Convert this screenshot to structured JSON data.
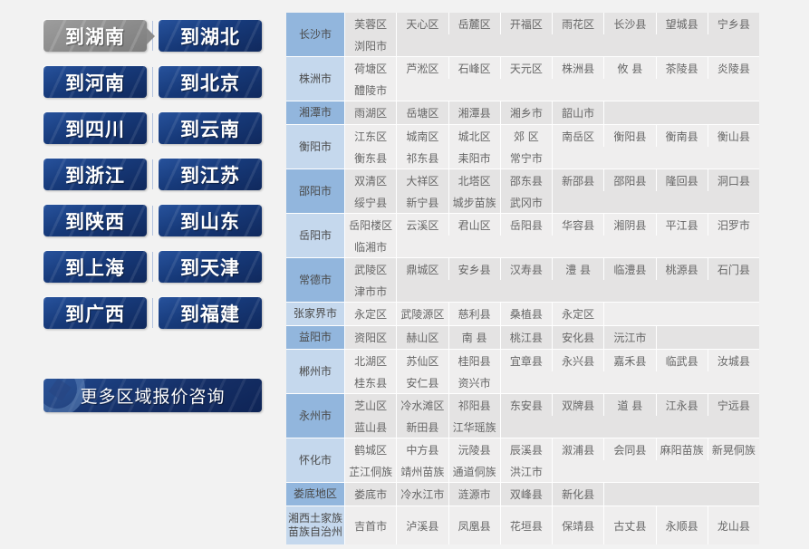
{
  "colors": {
    "page_bg": "#f2f2f2",
    "button_navy": "#173a7a",
    "active_gray": "#8b8b8b",
    "city_blue_dark": "#92b6dd",
    "city_blue_light": "#c5d8ed",
    "cell_gray_dark": "#e4e3e3",
    "cell_gray_light": "#efeeee"
  },
  "nav": {
    "provinces": [
      {
        "label": "到湖南",
        "active": true
      },
      {
        "label": "到湖北",
        "active": false
      },
      {
        "label": "到河南",
        "active": false
      },
      {
        "label": "到北京",
        "active": false
      },
      {
        "label": "到四川",
        "active": false
      },
      {
        "label": "到云南",
        "active": false
      },
      {
        "label": "到浙江",
        "active": false
      },
      {
        "label": "到江苏",
        "active": false
      },
      {
        "label": "到陕西",
        "active": false
      },
      {
        "label": "到山东",
        "active": false
      },
      {
        "label": "到上海",
        "active": false
      },
      {
        "label": "到天津",
        "active": false
      },
      {
        "label": "到广西",
        "active": false
      },
      {
        "label": "到福建",
        "active": false
      }
    ],
    "more_button": "更多区域报价咨询"
  },
  "table": {
    "columns": 8,
    "rows": [
      {
        "city": "长沙市",
        "lines": [
          [
            "芙蓉区",
            "天心区",
            "岳麓区",
            "开福区",
            "雨花区",
            "长沙县",
            "望城县",
            "宁乡县"
          ],
          [
            "浏阳市"
          ]
        ]
      },
      {
        "city": "株洲市",
        "lines": [
          [
            "荷塘区",
            "芦淞区",
            "石峰区",
            "天元区",
            "株洲县",
            "攸 县",
            "茶陵县",
            "炎陵县"
          ],
          [
            "醴陵市"
          ]
        ]
      },
      {
        "city": "湘潭市",
        "lines": [
          [
            "雨湖区",
            "岳塘区",
            "湘潭县",
            "湘乡市",
            "韶山市"
          ]
        ]
      },
      {
        "city": "衡阳市",
        "lines": [
          [
            "江东区",
            "城南区",
            "城北区",
            "郊 区",
            "南岳区",
            "衡阳县",
            "衡南县",
            "衡山县"
          ],
          [
            "衡东县",
            "祁东县",
            "耒阳市",
            "常宁市"
          ]
        ]
      },
      {
        "city": "邵阳市",
        "lines": [
          [
            "双清区",
            "大祥区",
            "北塔区",
            "邵东县",
            "新邵县",
            "邵阳县",
            "隆回县",
            "洞口县"
          ],
          [
            "绥宁县",
            "新宁县",
            "城步苗族",
            "武冈市"
          ]
        ]
      },
      {
        "city": "岳阳市",
        "lines": [
          [
            "岳阳楼区",
            "云溪区",
            "君山区",
            "岳阳县",
            "华容县",
            "湘阴县",
            "平江县",
            "汨罗市"
          ],
          [
            "临湘市"
          ]
        ]
      },
      {
        "city": "常德市",
        "lines": [
          [
            "武陵区",
            "鼎城区",
            "安乡县",
            "汉寿县",
            "澧 县",
            "临澧县",
            "桃源县",
            "石门县"
          ],
          [
            "津市市"
          ]
        ]
      },
      {
        "city": "张家界市",
        "lines": [
          [
            "永定区",
            "武陵源区",
            "慈利县",
            "桑植县",
            "永定区"
          ]
        ]
      },
      {
        "city": "益阳市",
        "lines": [
          [
            "资阳区",
            "赫山区",
            "南 县",
            "桃江县",
            "安化县",
            "沅江市"
          ]
        ]
      },
      {
        "city": "郴州市",
        "lines": [
          [
            "北湖区",
            "苏仙区",
            "桂阳县",
            "宜章县",
            "永兴县",
            "嘉禾县",
            "临武县",
            "汝城县"
          ],
          [
            "桂东县",
            "安仁县",
            "资兴市"
          ]
        ]
      },
      {
        "city": "永州市",
        "lines": [
          [
            "芝山区",
            "冷水滩区",
            "祁阳县",
            "东安县",
            "双牌县",
            "道 县",
            "江永县",
            "宁远县"
          ],
          [
            "蓝山县",
            "新田县",
            "江华瑶族"
          ]
        ]
      },
      {
        "city": "怀化市",
        "lines": [
          [
            "鹤城区",
            "中方县",
            "沅陵县",
            "辰溪县",
            "溆浦县",
            "会同县",
            "麻阳苗族",
            "新晃侗族"
          ],
          [
            "芷江侗族",
            "靖州苗族",
            "通道侗族",
            "洪江市"
          ]
        ]
      },
      {
        "city": "娄底地区",
        "lines": [
          [
            "娄底市",
            "冷水江市",
            "涟源市",
            "双峰县",
            "新化县"
          ]
        ]
      },
      {
        "city": "湘西土家族苗族自治州",
        "lines": [
          [
            "吉首市",
            "泸溪县",
            "凤凰县",
            "花垣县",
            "保靖县",
            "古丈县",
            "永顺县",
            "龙山县"
          ]
        ]
      }
    ]
  }
}
